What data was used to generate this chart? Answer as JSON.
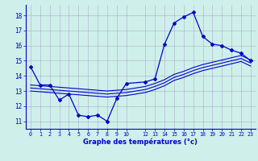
{
  "xlabel": "Graphe des températures (°c)",
  "bg_color": "#cff0ea",
  "grid_color": "#aaaacc",
  "line_color": "#0000cc",
  "xlim": [
    -0.5,
    23.5
  ],
  "ylim": [
    10.5,
    18.7
  ],
  "xticks": [
    0,
    1,
    2,
    3,
    4,
    5,
    6,
    7,
    8,
    9,
    10,
    12,
    13,
    14,
    15,
    16,
    17,
    18,
    19,
    20,
    21,
    22,
    23
  ],
  "yticks": [
    11,
    12,
    13,
    14,
    15,
    16,
    17,
    18
  ],
  "curve1_x": [
    0,
    1,
    2,
    3,
    4,
    5,
    6,
    7,
    8,
    9,
    10,
    12,
    13,
    14,
    15,
    16,
    17,
    18,
    19,
    20,
    21,
    22,
    23
  ],
  "curve1_y": [
    14.6,
    13.4,
    13.4,
    12.4,
    12.8,
    11.4,
    11.3,
    11.4,
    11.0,
    12.5,
    13.5,
    13.6,
    13.8,
    16.1,
    17.5,
    17.9,
    18.2,
    16.6,
    16.1,
    16.0,
    15.7,
    15.5,
    15.0
  ],
  "curve2_x": [
    0,
    1,
    2,
    3,
    4,
    5,
    6,
    7,
    8,
    9,
    10,
    12,
    13,
    14,
    15,
    16,
    17,
    18,
    19,
    20,
    21,
    22,
    23
  ],
  "curve2_y": [
    13.4,
    13.35,
    13.3,
    13.25,
    13.2,
    13.15,
    13.1,
    13.05,
    13.0,
    13.05,
    13.1,
    13.3,
    13.5,
    13.75,
    14.1,
    14.3,
    14.55,
    14.75,
    14.9,
    15.05,
    15.2,
    15.35,
    15.05
  ],
  "curve3_x": [
    0,
    1,
    2,
    3,
    4,
    5,
    6,
    7,
    8,
    9,
    10,
    12,
    13,
    14,
    15,
    16,
    17,
    18,
    19,
    20,
    21,
    22,
    23
  ],
  "curve3_y": [
    13.2,
    13.15,
    13.1,
    13.05,
    13.0,
    12.95,
    12.9,
    12.85,
    12.8,
    12.85,
    12.9,
    13.1,
    13.3,
    13.55,
    13.9,
    14.1,
    14.35,
    14.55,
    14.7,
    14.85,
    15.0,
    15.15,
    14.85
  ],
  "curve4_x": [
    0,
    1,
    2,
    3,
    4,
    5,
    6,
    7,
    8,
    9,
    10,
    12,
    13,
    14,
    15,
    16,
    17,
    18,
    19,
    20,
    21,
    22,
    23
  ],
  "curve4_y": [
    13.0,
    12.95,
    12.9,
    12.85,
    12.8,
    12.75,
    12.7,
    12.65,
    12.6,
    12.65,
    12.7,
    12.9,
    13.1,
    13.35,
    13.7,
    13.9,
    14.15,
    14.35,
    14.5,
    14.65,
    14.8,
    14.95,
    14.65
  ]
}
